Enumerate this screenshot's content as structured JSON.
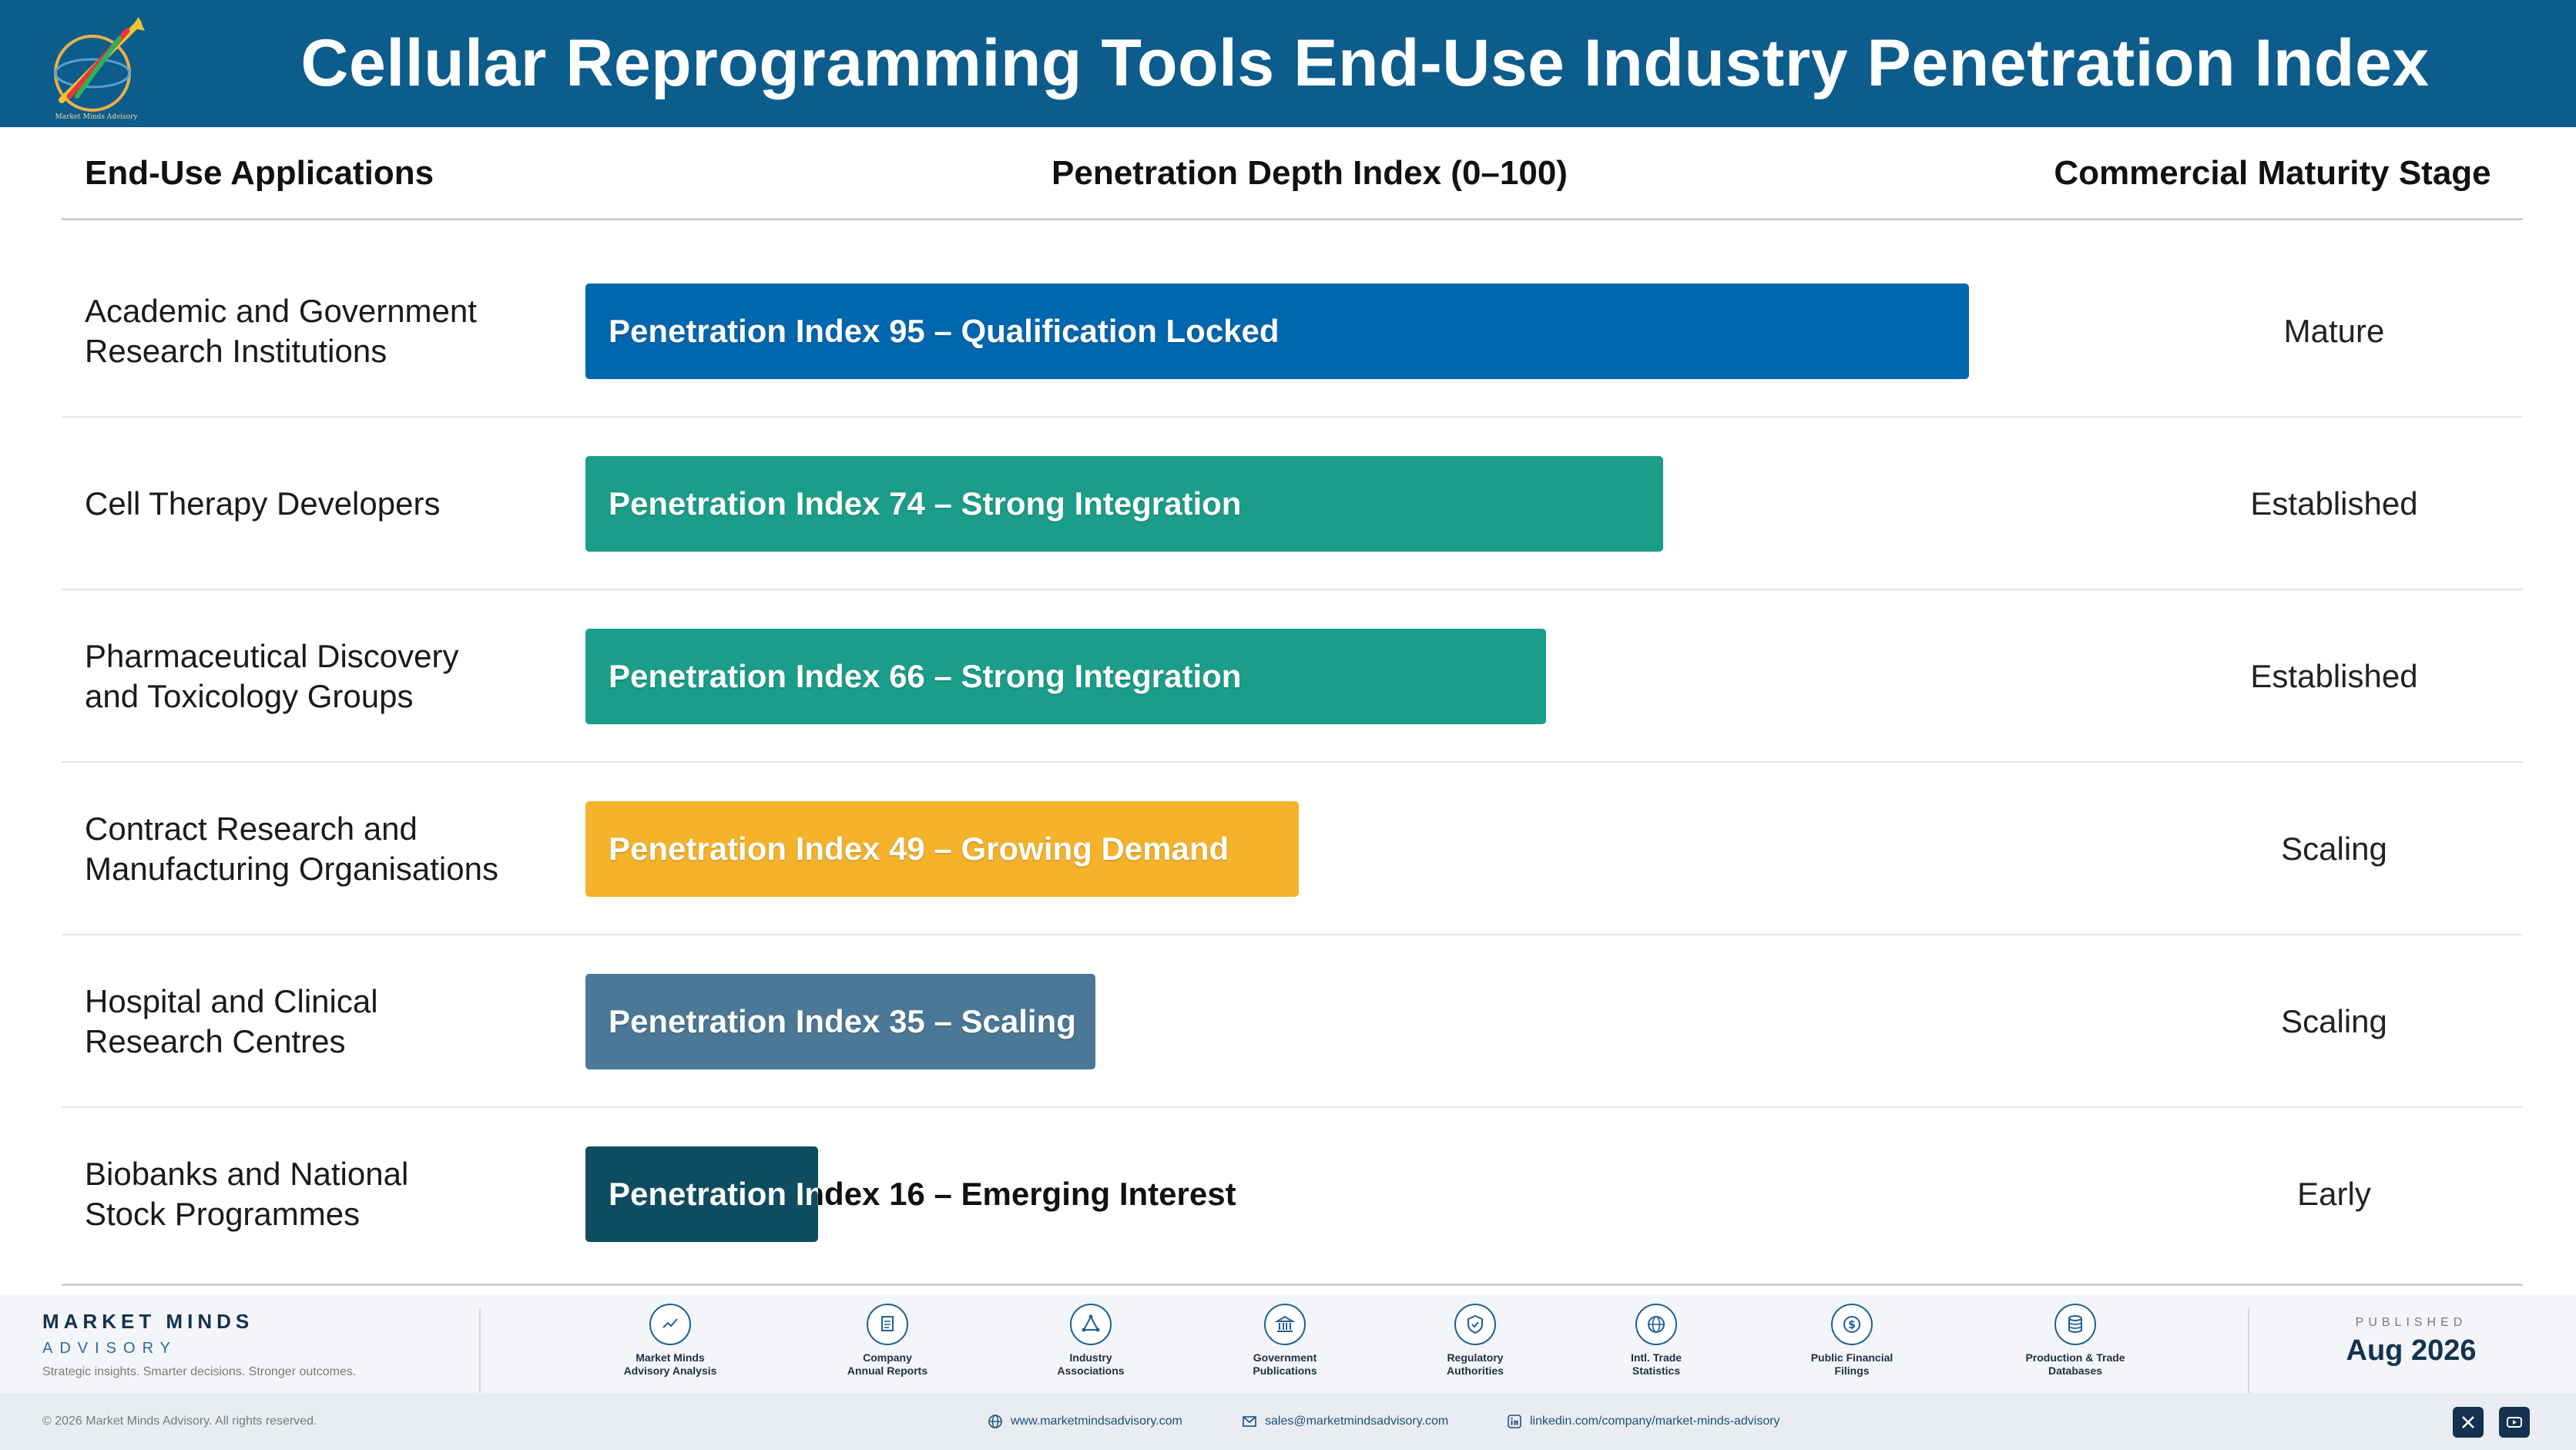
{
  "header": {
    "title": "Cellular Reprogramming Tools End-Use Industry Penetration Index",
    "logo_text": "Market Minds Advisory"
  },
  "columns": {
    "applications": "End-Use Applications",
    "penetration": "Penetration Depth Index (0–100)",
    "maturity": "Commercial Maturity Stage"
  },
  "chart_data": {
    "type": "bar",
    "orientation": "horizontal",
    "title": "Cellular Reprogramming Tools End-Use Industry Penetration Index",
    "xlabel": "Penetration Depth Index (0–100)",
    "xlim": [
      0,
      100
    ],
    "grid": false,
    "categories": [
      "Academic and Government Research Institutions",
      "Cell Therapy Developers",
      "Pharmaceutical Discovery and Toxicology Groups",
      "Contract Research and Manufacturing Organisations",
      "Hospital and Clinical Research Centres",
      "Biobanks and National Stock Programmes"
    ],
    "values": [
      95,
      74,
      66,
      49,
      35,
      16
    ],
    "bar_labels": [
      "Penetration Index 95 – Qualification Locked",
      "Penetration Index 74 – Strong Integration",
      "Penetration Index 66 – Strong Integration",
      "Penetration Index 49 – Growing Demand",
      "Penetration Index 35 – Scaling",
      "Penetration Index 16 – Emerging Interest"
    ],
    "maturity_stages": [
      "Mature",
      "Established",
      "Established",
      "Scaling",
      "Scaling",
      "Early"
    ],
    "colors": [
      "#0066ad",
      "#1a9e8a",
      "#1a9e8a",
      "#f5b32b",
      "#4a7896",
      "#0e4c60"
    ]
  },
  "rows": [
    {
      "label_line1": "Academic and Government",
      "label_line2": "Research Institutions"
    },
    {
      "label_line1": "Cell Therapy Developers",
      "label_line2": ""
    },
    {
      "label_line1": "Pharmaceutical Discovery",
      "label_line2": "and Toxicology Groups"
    },
    {
      "label_line1": "Contract Research and",
      "label_line2": "Manufacturing Organisations"
    },
    {
      "label_line1": "Hospital and Clinical",
      "label_line2": "Research Centres"
    },
    {
      "label_line1": "Biobanks and National",
      "label_line2": "Stock Programmes"
    }
  ],
  "footer": {
    "brand_name": "MARKET MINDS",
    "brand_sub": "ADVISORY",
    "tagline": "Strategic insights. Smarter decisions. Stronger outcomes.",
    "sources": [
      {
        "line1": "Market Minds",
        "line2": "Advisory Analysis",
        "icon": "trend-icon"
      },
      {
        "line1": "Company",
        "line2": "Annual Reports",
        "icon": "document-icon"
      },
      {
        "line1": "Industry",
        "line2": "Associations",
        "icon": "network-icon"
      },
      {
        "line1": "Government",
        "line2": "Publications",
        "icon": "building-icon"
      },
      {
        "line1": "Regulatory",
        "line2": "Authorities",
        "icon": "shield-icon"
      },
      {
        "line1": "Intl. Trade",
        "line2": "Statistics",
        "icon": "globe-icon"
      },
      {
        "line1": "Public Financial",
        "line2": "Filings",
        "icon": "dollar-icon"
      },
      {
        "line1": "Production & Trade",
        "line2": "Databases",
        "icon": "database-icon"
      }
    ],
    "published_label": "PUBLISHED",
    "published_date": "Aug 2026",
    "copyright": "© 2026 Market Minds Advisory. All rights reserved.",
    "website": "www.marketmindsadvisory.com",
    "email": "sales@marketmindsadvisory.com",
    "linkedin": "linkedin.com/company/market-minds-advisory"
  }
}
